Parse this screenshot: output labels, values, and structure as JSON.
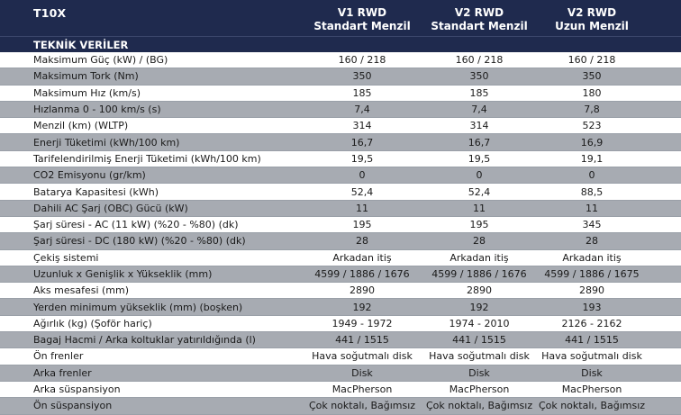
{
  "header": {
    "model": "T10X",
    "columns": [
      {
        "line1": "V1 RWD",
        "line2": "Standart Menzil"
      },
      {
        "line1": "V2 RWD",
        "line2": "Standart Menzil"
      },
      {
        "line1": "V2 RWD",
        "line2": "Uzun Menzil"
      }
    ]
  },
  "section_title": "TEKNİK VERİLER",
  "rows": [
    {
      "label": "Maksimum Güç (kW) / (BG)",
      "v": [
        "160 / 218",
        "160 / 218",
        "160 / 218"
      ]
    },
    {
      "label": "Maksimum Tork (Nm)",
      "v": [
        "350",
        "350",
        "350"
      ]
    },
    {
      "label": "Maksimum Hız (km/s)",
      "v": [
        "185",
        "185",
        "180"
      ]
    },
    {
      "label": "Hızlanma 0 - 100 km/s (s)",
      "v": [
        "7,4",
        "7,4",
        "7,8"
      ]
    },
    {
      "label": "Menzil (km) (WLTP)",
      "v": [
        "314",
        "314",
        "523"
      ]
    },
    {
      "label": "Enerji Tüketimi (kWh/100 km)",
      "v": [
        "16,7",
        "16,7",
        "16,9"
      ]
    },
    {
      "label": "Tarifelendirilmiş Enerji Tüketimi (kWh/100 km)",
      "v": [
        "19,5",
        "19,5",
        "19,1"
      ]
    },
    {
      "label": "CO2 Emisyonu (gr/km)",
      "v": [
        "0",
        "0",
        "0"
      ]
    },
    {
      "label": "Batarya Kapasitesi (kWh)",
      "v": [
        "52,4",
        "52,4",
        "88,5"
      ]
    },
    {
      "label": "Dahili AC Şarj (OBC) Gücü (kW)",
      "v": [
        "11",
        "11",
        "11"
      ]
    },
    {
      "label": "Şarj süresi - AC (11 kW) (%20 - %80) (dk)",
      "v": [
        "195",
        "195",
        "345"
      ]
    },
    {
      "label": "Şarj süresi - DC (180 kW) (%20 - %80) (dk)",
      "v": [
        "28",
        "28",
        "28"
      ]
    },
    {
      "label": "Çekiş sistemi",
      "v": [
        "Arkadan itiş",
        "Arkadan itiş",
        "Arkadan itiş"
      ]
    },
    {
      "label": "Uzunluk x Genişlik x Yükseklik (mm)",
      "v": [
        "4599 / 1886 / 1676",
        "4599 / 1886 / 1676",
        "4599 / 1886 / 1675"
      ]
    },
    {
      "label": "Aks mesafesi (mm)",
      "v": [
        "2890",
        "2890",
        "2890"
      ]
    },
    {
      "label": "Yerden minimum yükseklik (mm) (boşken)",
      "v": [
        "192",
        "192",
        "193"
      ]
    },
    {
      "label": "Ağırlık (kg) (Şoför hariç)",
      "v": [
        "1949 - 1972",
        "1974 - 2010",
        "2126 - 2162"
      ]
    },
    {
      "label": "Bagaj Hacmi / Arka koltuklar yatırıldığında (l)",
      "v": [
        "441 / 1515",
        "441 / 1515",
        "441 / 1515"
      ]
    },
    {
      "label": "Ön frenler",
      "v": [
        "Hava soğutmalı disk",
        "Hava soğutmalı disk",
        "Hava soğutmalı disk"
      ]
    },
    {
      "label": "Arka frenler",
      "v": [
        "Disk",
        "Disk",
        "Disk"
      ]
    },
    {
      "label": "Arka süspansiyon",
      "v": [
        "MacPherson",
        "MacPherson",
        "MacPherson"
      ]
    },
    {
      "label": "Ön süspansiyon",
      "v": [
        "Çok noktalı, Bağımsız",
        "Çok noktalı, Bağımsız",
        "Çok noktalı, Bağımsız"
      ]
    }
  ],
  "colors": {
    "header_bg": "#1f2a4e",
    "row_alt_bg": "#a7abb2",
    "row_bg": "#ffffff"
  }
}
